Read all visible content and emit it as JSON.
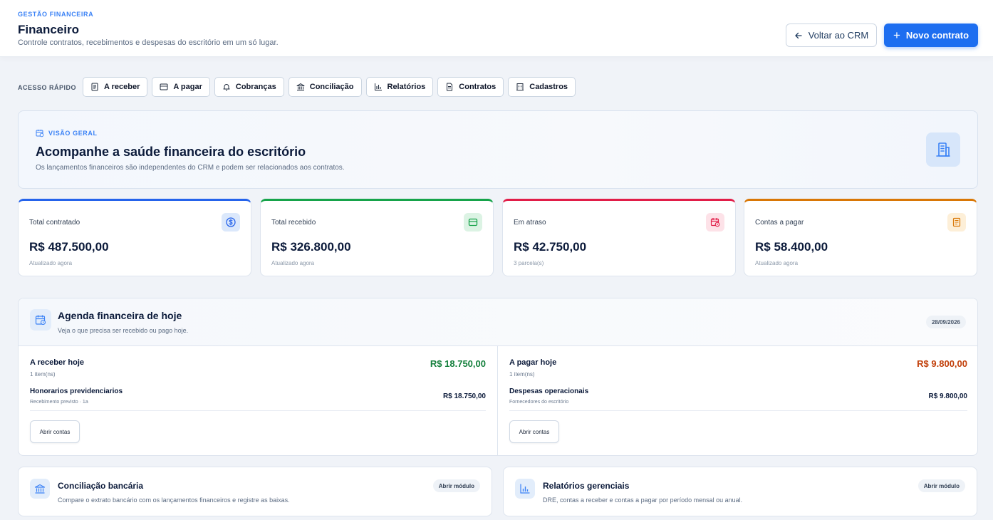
{
  "header": {
    "eyebrow": "GESTÃO FINANCEIRA",
    "title": "Financeiro",
    "subtitle": "Controle contratos, recebimentos e despesas do escritório em um só lugar.",
    "back_label": "Voltar ao CRM",
    "new_label": "Novo contrato",
    "accent": "#1d6ef0"
  },
  "quick_access": {
    "label": "ACESSO RÁPIDO",
    "items": [
      {
        "label": "A receber",
        "icon": "document-icon"
      },
      {
        "label": "A pagar",
        "icon": "wallet-icon"
      },
      {
        "label": "Cobranças",
        "icon": "bell-icon"
      },
      {
        "label": "Conciliação",
        "icon": "bank-icon"
      },
      {
        "label": "Relatórios",
        "icon": "bar-chart-icon"
      },
      {
        "label": "Contratos",
        "icon": "file-icon"
      },
      {
        "label": "Cadastros",
        "icon": "building-icon"
      }
    ]
  },
  "overview": {
    "eyebrow": "VISÃO GERAL",
    "title": "Acompanhe a saúde financeira do escritório",
    "text": "Os lançamentos financeiros são independentes do CRM e podem ser relacionados aos contratos.",
    "icon": "building-icon"
  },
  "stats": [
    {
      "label": "Total contratado",
      "value": "R$ 487.500,00",
      "note": "Atualizado agora",
      "icon": "dollar-circle-icon",
      "color": "#2563eb",
      "bg": "#dbe8fb"
    },
    {
      "label": "Total recebido",
      "value": "R$ 326.800,00",
      "note": "Atualizado agora",
      "icon": "wallet-icon",
      "color": "#16a34a",
      "bg": "#dcf3e4"
    },
    {
      "label": "Em atraso",
      "value": "R$ 42.750,00",
      "note": "3 parcela(s)",
      "icon": "calendar-clock-icon",
      "color": "#e11d48",
      "bg": "#fde2e8"
    },
    {
      "label": "Contas a pagar",
      "value": "R$ 58.400,00",
      "note": "Atualizado agora",
      "icon": "document-icon",
      "color": "#d97706",
      "bg": "#fdefd8"
    }
  ],
  "agenda": {
    "title": "Agenda financeira de hoje",
    "subtitle": "Veja o que precisa ser recebido ou pago hoje.",
    "date": "28/09/2026",
    "receive": {
      "title": "A receber hoje",
      "count": "1 item(ns)",
      "amount": "R$ 18.750,00",
      "color": "#15803d",
      "item_name": "Honorarios previdenciarios",
      "item_desc": "Recebimento previsto · 1a",
      "item_amount": "R$ 18.750,00",
      "button": "Abrir contas"
    },
    "pay": {
      "title": "A pagar hoje",
      "count": "1 item(ns)",
      "amount": "R$ 9.800,00",
      "color": "#c2410c",
      "item_name": "Despesas operacionais",
      "item_desc": "Fornecedores do escritório",
      "item_amount": "R$ 9.800,00",
      "button": "Abrir contas"
    }
  },
  "modules": [
    {
      "title": "Conciliação bancária",
      "text": "Compare o extrato bancário com os lançamentos financeiros e registre as baixas.",
      "badge": "Abrir módulo",
      "icon": "bank-icon"
    },
    {
      "title": "Relatórios gerenciais",
      "text": "DRE, contas a receber e contas a pagar por período mensal ou anual.",
      "badge": "Abrir módulo",
      "icon": "bar-chart-icon"
    }
  ]
}
